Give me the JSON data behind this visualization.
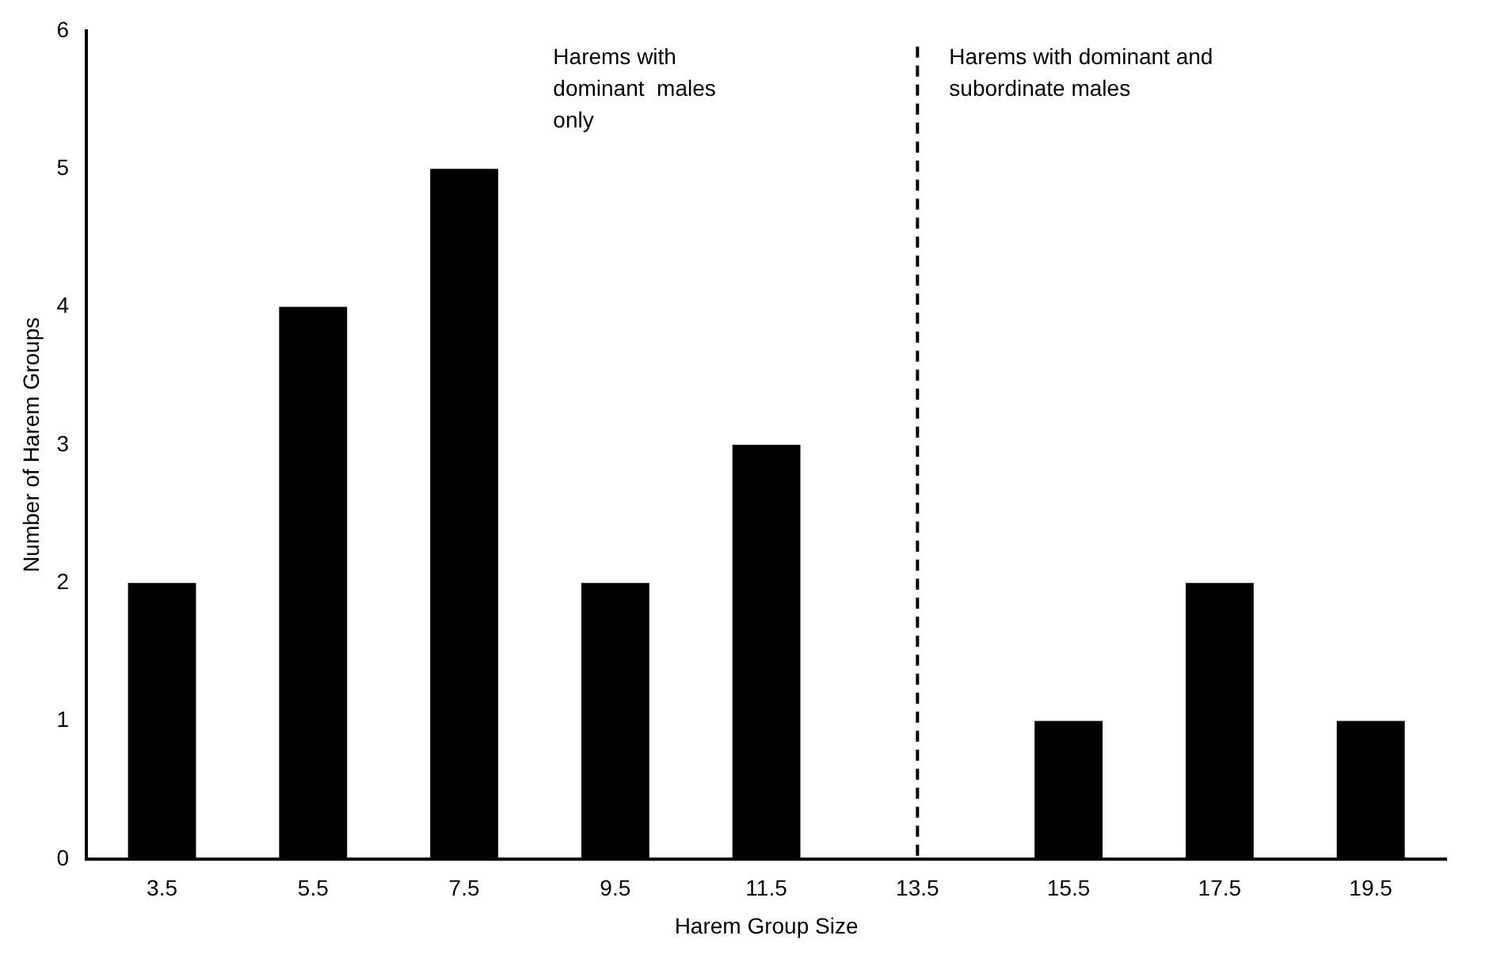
{
  "chart_data": {
    "type": "bar",
    "xlabel": "Harem Group Size",
    "ylabel": "Number of Harem Groups",
    "categories": [
      "3.5",
      "5.5",
      "7.5",
      "9.5",
      "11.5",
      "13.5",
      "15.5",
      "17.5",
      "19.5"
    ],
    "values": [
      2,
      4,
      5,
      2,
      3,
      0,
      1,
      2,
      1
    ],
    "color": "#000000",
    "ylim": [
      0,
      6
    ],
    "yticks": [
      0,
      1,
      2,
      3,
      4,
      5,
      6
    ],
    "grid": false,
    "legend": false,
    "ref_lines": [
      {
        "axis": "x",
        "value": "13.5",
        "color": "#000000",
        "line_style": "dashed"
      }
    ],
    "annotations": [
      "Harems with\ndominant  males\nonly",
      "Harems with dominant and\nsubordinate males"
    ]
  }
}
